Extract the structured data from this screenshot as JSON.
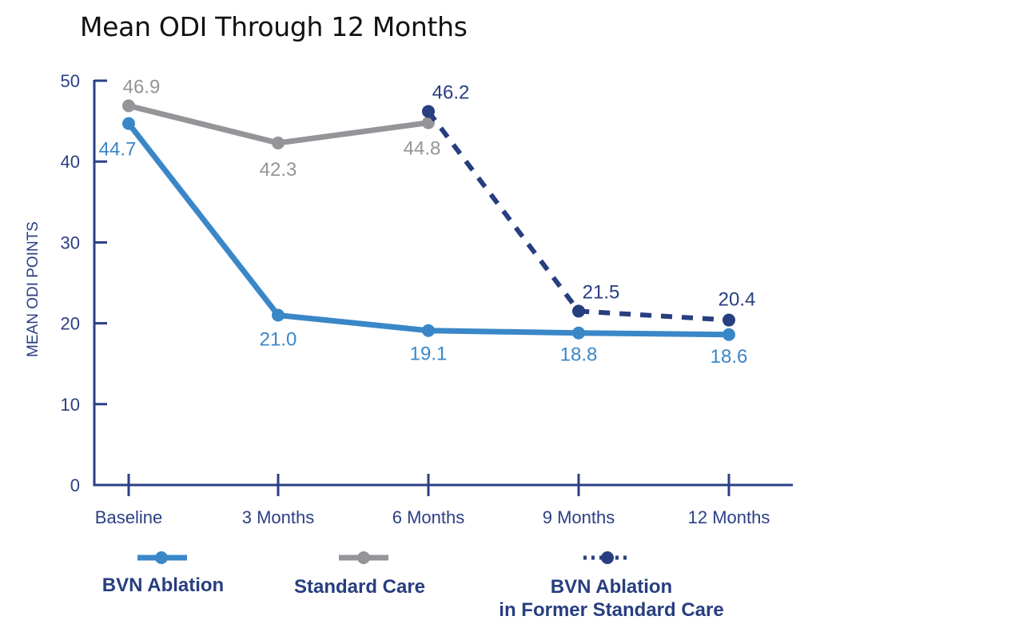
{
  "chart_data": {
    "type": "line",
    "title": "Mean ODI Through 12 Months",
    "xlabel": "",
    "ylabel": "MEAN ODI POINTS",
    "categories": [
      "Baseline",
      "3 Months",
      "6 Months",
      "9 Months",
      "12 Months"
    ],
    "ylim": [
      0,
      50
    ],
    "yticks": [
      0,
      10,
      20,
      30,
      40,
      50
    ],
    "grid": false,
    "legend_placement": "bottom",
    "series": [
      {
        "name": "BVN Ablation",
        "color": "#3a87c8",
        "style": "solid",
        "values": [
          44.7,
          21.0,
          19.1,
          18.8,
          18.6
        ],
        "labels": [
          "44.7",
          "21.0",
          "19.1",
          "18.8",
          "18.6"
        ]
      },
      {
        "name": "Standard Care",
        "color": "#939598",
        "style": "solid",
        "values": [
          46.9,
          42.3,
          44.8,
          null,
          null
        ],
        "labels": [
          "46.9",
          "42.3",
          "44.8",
          null,
          null
        ]
      },
      {
        "name": "BVN Ablation in Former Standard Care",
        "name_lines": [
          "BVN Ablation",
          "in Former Standard Care"
        ],
        "color": "#273e7f",
        "style": "dashed",
        "values": [
          null,
          null,
          46.2,
          21.5,
          20.4
        ],
        "labels": [
          null,
          null,
          "46.2",
          "21.5",
          "20.4"
        ]
      }
    ],
    "axis_color": "#2b3f84"
  }
}
